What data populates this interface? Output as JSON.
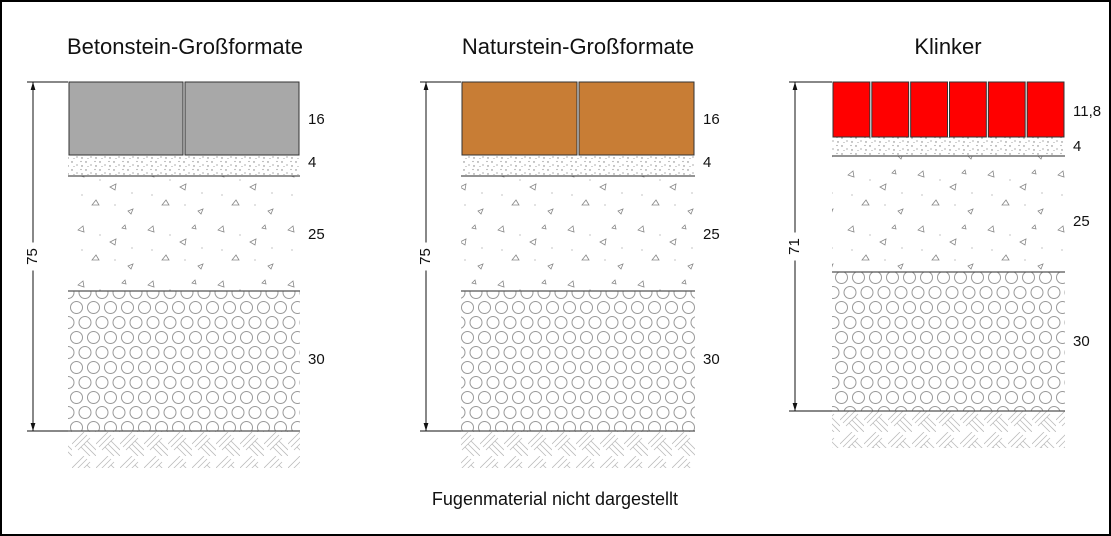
{
  "columns": [
    {
      "title": "Betonstein-Großformate",
      "total": "75",
      "layers": [
        "16",
        "4",
        "25",
        "30"
      ]
    },
    {
      "title": "Naturstein-Großformate",
      "total": "75",
      "layers": [
        "16",
        "4",
        "25",
        "30"
      ]
    },
    {
      "title": "Klinker",
      "total": "71",
      "layers": [
        "11,8",
        "4",
        "25",
        "30"
      ]
    }
  ],
  "footnote": "Fugenmaterial nicht dargestellt"
}
